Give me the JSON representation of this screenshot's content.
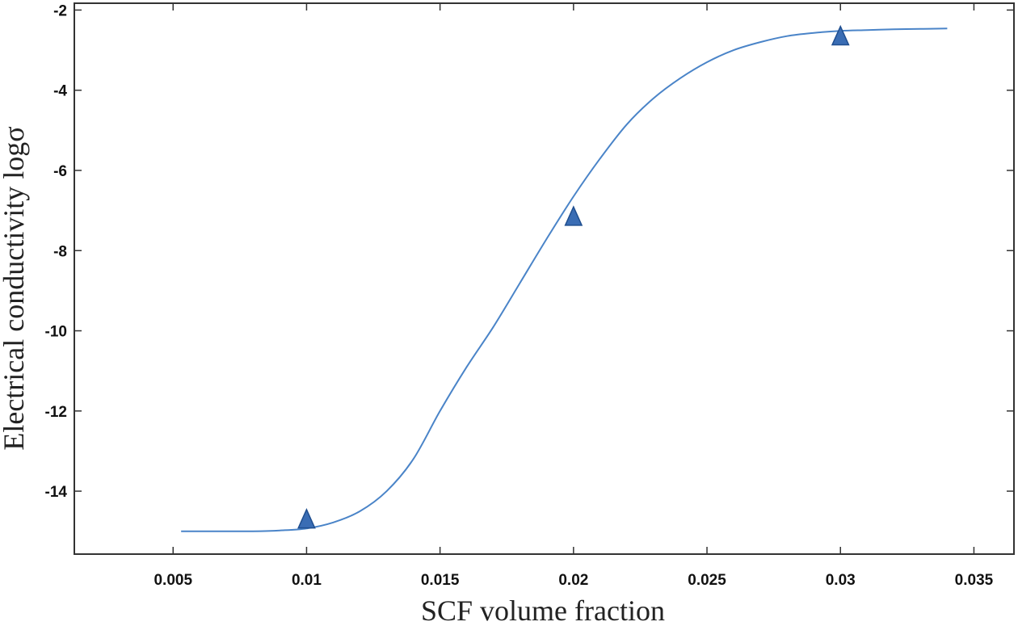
{
  "chart_data": {
    "type": "scatter",
    "xlabel": "SCF volume fraction",
    "ylabel": "Electrical conductivity logσ",
    "xlim": [
      0.0013,
      0.0365
    ],
    "ylim": [
      -15.57,
      -1.83
    ],
    "x_ticks": [
      0.005,
      0.01,
      0.015,
      0.02,
      0.025,
      0.03,
      0.035
    ],
    "x_tick_labels": [
      "0.005",
      "0.01",
      "0.015",
      "0.02",
      "0.025",
      "0.03",
      "0.035"
    ],
    "y_ticks": [
      -2,
      -4,
      -6,
      -8,
      -10,
      -12,
      -14
    ],
    "y_tick_labels": [
      "-2",
      "-4",
      "-6",
      "-8",
      "-10",
      "-12",
      "-14"
    ],
    "grid": false,
    "legend": "none",
    "series": [
      {
        "marker": "triangle",
        "color": "#3a6db4",
        "points": [
          {
            "x": 0.01,
            "y": -14.7
          },
          {
            "x": 0.02,
            "y": -7.15
          },
          {
            "x": 0.03,
            "y": -2.65
          }
        ]
      },
      {
        "style": "line",
        "color": "#4a84c8",
        "fit": "sigmoid",
        "x": [
          0.0053,
          0.006,
          0.007,
          0.008,
          0.009,
          0.01,
          0.011,
          0.012,
          0.013,
          0.014,
          0.015,
          0.016,
          0.017,
          0.018,
          0.019,
          0.02,
          0.021,
          0.022,
          0.023,
          0.024,
          0.025,
          0.026,
          0.027,
          0.028,
          0.029,
          0.03,
          0.031,
          0.032,
          0.033,
          0.034
        ],
        "y": [
          -15.0,
          -15.0,
          -15.0,
          -15.0,
          -14.98,
          -14.93,
          -14.78,
          -14.5,
          -14.0,
          -13.2,
          -12.0,
          -10.9,
          -9.9,
          -8.8,
          -7.7,
          -6.65,
          -5.7,
          -4.85,
          -4.2,
          -3.7,
          -3.3,
          -3.0,
          -2.8,
          -2.65,
          -2.57,
          -2.52,
          -2.5,
          -2.48,
          -2.47,
          -2.46
        ]
      }
    ]
  }
}
